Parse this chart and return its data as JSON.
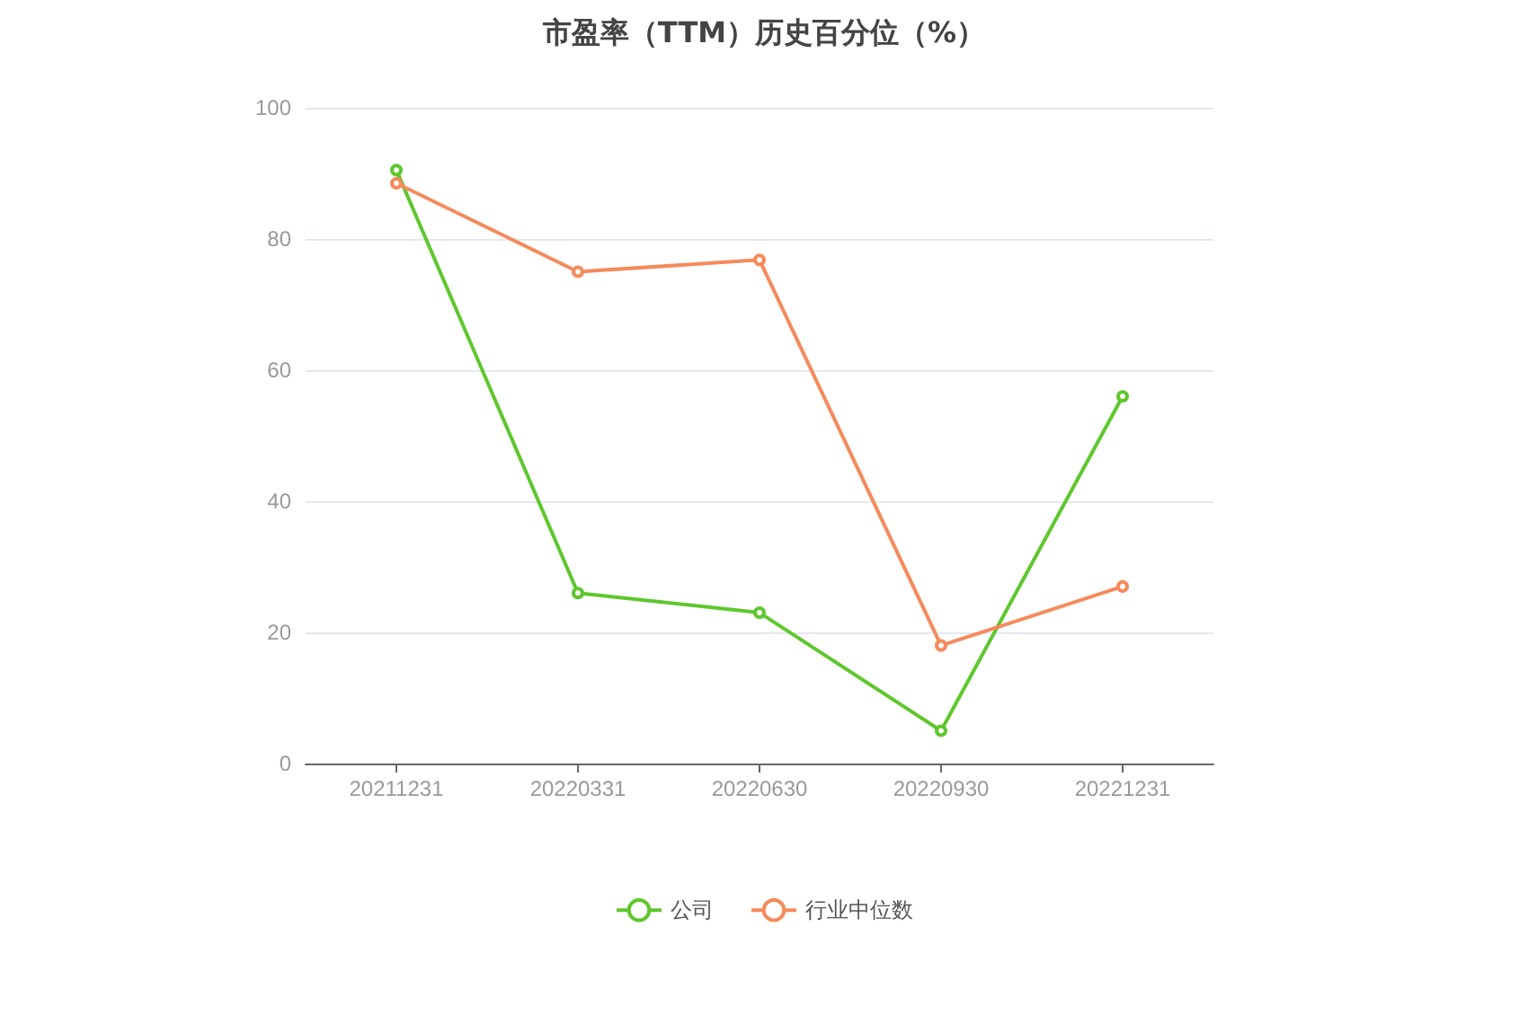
{
  "chart_data": {
    "type": "line",
    "title": "市盈率（TTM）历史百分位（%）",
    "categories": [
      "20211231",
      "20220331",
      "20220630",
      "20220930",
      "20221231"
    ],
    "series": [
      {
        "name": "公司",
        "color": "#5ec72d",
        "values": [
          90.5,
          26,
          23,
          5,
          56
        ]
      },
      {
        "name": "行业中位数",
        "color": "#f58a5c",
        "values": [
          88.5,
          75,
          76.8,
          18,
          27
        ]
      }
    ],
    "ylim": [
      0,
      100
    ],
    "yticks": [
      0,
      20,
      40,
      60,
      80,
      100
    ],
    "grid": "y",
    "legend": "bottom",
    "marker": "circle"
  }
}
